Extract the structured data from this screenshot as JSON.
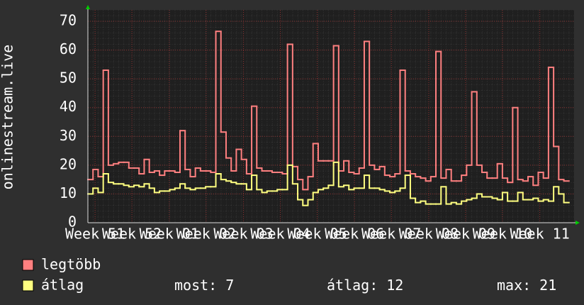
{
  "chart_data": {
    "type": "step",
    "y_label": "onlinestream.live",
    "series": [
      {
        "name": "legtöbb",
        "color": "#ff8080",
        "values": [
          15,
          18.5,
          16,
          53,
          20,
          20.5,
          21,
          21,
          19,
          19,
          17,
          22,
          17.5,
          18,
          16.5,
          18,
          18,
          17.5,
          32,
          18.5,
          16,
          19,
          18,
          18,
          17.5,
          66.5,
          31.5,
          22.5,
          18,
          25.5,
          22,
          17,
          40.5,
          19,
          18,
          18,
          17.5,
          17.5,
          17,
          62,
          19.5,
          15,
          11.5,
          16,
          27.5,
          21.5,
          21.5,
          21.5,
          61.5,
          18,
          21.5,
          17.5,
          17,
          19,
          63,
          20,
          18.5,
          19.5,
          16.5,
          16,
          17,
          53,
          18,
          17,
          16,
          15.5,
          14.5,
          16,
          59.5,
          15.5,
          18.5,
          14.5,
          14.5,
          16.5,
          20,
          45.5,
          20,
          17.5,
          15.5,
          15.5,
          20.5,
          15.5,
          14,
          40,
          15,
          14.5,
          16,
          13,
          17.5,
          15.5,
          54,
          26.5,
          15,
          14.5
        ]
      },
      {
        "name": "átlag",
        "color": "#ffff80",
        "values": [
          10,
          12,
          10.5,
          17,
          14,
          13.5,
          13.5,
          13,
          12.5,
          13,
          12.5,
          13.5,
          12,
          10.5,
          11,
          11,
          11.5,
          12,
          13.5,
          12,
          11.5,
          12,
          12,
          12.5,
          12.5,
          17,
          15,
          14.5,
          14,
          13.5,
          13.5,
          11.5,
          16.5,
          11.5,
          10.5,
          11,
          11,
          11.5,
          11.5,
          20,
          13.5,
          8,
          6,
          8,
          10.5,
          11.5,
          12,
          13,
          21,
          12.5,
          13,
          11.5,
          12,
          12,
          16.5,
          12,
          12,
          11.5,
          11,
          10.5,
          11,
          12,
          16.5,
          8.5,
          7,
          7.5,
          6.5,
          6.5,
          6.5,
          12.5,
          6.5,
          7,
          6.5,
          7.5,
          8,
          8.5,
          10,
          9,
          9,
          8.5,
          8,
          10.5,
          7.5,
          7.5,
          10.5,
          8,
          8,
          8.5,
          7.5,
          8,
          7.5,
          12.5,
          10,
          7
        ]
      }
    ],
    "xlim": [
      0,
      95
    ],
    "xticks": [
      {
        "value": 1.4,
        "label": "Week 51"
      },
      {
        "value": 8.6,
        "label": "Week 52"
      },
      {
        "value": 15.9,
        "label": "Week 01"
      },
      {
        "value": 23.1,
        "label": "Week 02"
      },
      {
        "value": 30.4,
        "label": "Week 03"
      },
      {
        "value": 37.6,
        "label": "Week 04"
      },
      {
        "value": 44.8,
        "label": "Week 05"
      },
      {
        "value": 52.1,
        "label": "Week 06"
      },
      {
        "value": 59.3,
        "label": "Week 07"
      },
      {
        "value": 66.6,
        "label": "Week 08"
      },
      {
        "value": 73.8,
        "label": "Week 09"
      },
      {
        "value": 81.0,
        "label": "Week 10"
      },
      {
        "value": 88.3,
        "label": "Week 11"
      }
    ],
    "ylim": [
      0,
      70
    ],
    "yticks": [
      0,
      10,
      20,
      30,
      40,
      50,
      60,
      70
    ],
    "grid": true,
    "stats": [
      {
        "label": "most:",
        "value": 7
      },
      {
        "label": "átlag:",
        "value": 12
      },
      {
        "label": "max:",
        "value": 21
      }
    ]
  }
}
